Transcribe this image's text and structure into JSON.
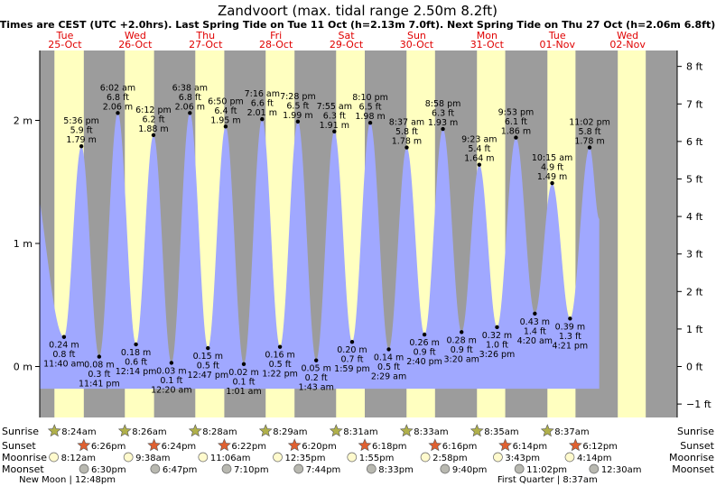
{
  "chart_data": {
    "type": "area",
    "title": "Zandvoort (max. tidal range 2.50m 8.2ft)",
    "subtitle": "Times are CEST (UTC +2.0hrs). Last Spring Tide on Tue 11 Oct (h=2.13m 7.0ft). Next Spring Tide on Thu 27 Oct (h=2.06m 6.8ft)",
    "ylim": [
      -0.42,
      2.65
    ],
    "left_axis": {
      "unit": "m",
      "ticks": [
        {
          "v": 0,
          "label": "0 m"
        },
        {
          "v": 1,
          "label": "1 m"
        },
        {
          "v": 2,
          "label": "2 m"
        }
      ]
    },
    "right_axis": {
      "unit": "ft",
      "ticks": [
        {
          "v": -1,
          "label": "−1 ft"
        },
        {
          "v": 0,
          "label": "0 ft"
        },
        {
          "v": 1,
          "label": "1 ft"
        },
        {
          "v": 2,
          "label": "2 ft"
        },
        {
          "v": 3,
          "label": "3 ft"
        },
        {
          "v": 4,
          "label": "4 ft"
        },
        {
          "v": 5,
          "label": "5 ft"
        },
        {
          "v": 6,
          "label": "6 ft"
        },
        {
          "v": 7,
          "label": "7 ft"
        },
        {
          "v": 8,
          "label": "8 ft"
        }
      ]
    },
    "days": [
      {
        "weekday": "Tue",
        "date": "25-Oct",
        "sunrise": 8.4,
        "sunset": 18.43
      },
      {
        "weekday": "Wed",
        "date": "26-Oct",
        "sunrise": 8.43,
        "sunset": 18.4
      },
      {
        "weekday": "Thu",
        "date": "27-Oct",
        "sunrise": 8.47,
        "sunset": 18.37
      },
      {
        "weekday": "Fri",
        "date": "28-Oct",
        "sunrise": 8.48,
        "sunset": 18.33
      },
      {
        "weekday": "Sat",
        "date": "29-Oct",
        "sunrise": 8.52,
        "sunset": 18.3
      },
      {
        "weekday": "Sun",
        "date": "30-Oct",
        "sunrise": 8.55,
        "sunset": 18.27
      },
      {
        "weekday": "Mon",
        "date": "31-Oct",
        "sunrise": 8.58,
        "sunset": 18.23
      },
      {
        "weekday": "Tue",
        "date": "01-Nov",
        "sunrise": 8.62,
        "sunset": 18.2
      },
      {
        "weekday": "Wed",
        "date": "02-Nov",
        "sunrise": 8.63,
        "sunset": 18.17
      }
    ],
    "tide_start": {
      "t": -0.5,
      "h": 1.68
    },
    "tide_end": {
      "t": 194.3,
      "h": 1.2
    },
    "tides": [
      {
        "t": 11.67,
        "h": 0.24,
        "type": "low",
        "lines": [
          "0.24 m",
          "0.8 ft",
          "11:40 am"
        ]
      },
      {
        "t": 17.6,
        "h": 1.79,
        "type": "high",
        "lines": [
          "5:36 pm",
          "5.9 ft",
          "1.79 m"
        ]
      },
      {
        "t": 23.68,
        "h": 0.08,
        "type": "low",
        "lines": [
          "0.08 m",
          "0.3 ft",
          "11:41 pm"
        ]
      },
      {
        "t": 30.03,
        "h": 2.06,
        "type": "high",
        "lines": [
          "6:02 am",
          "6.8 ft",
          "2.06 m"
        ]
      },
      {
        "t": 36.23,
        "h": 0.18,
        "type": "low",
        "lines": [
          "0.18 m",
          "0.6 ft",
          "12:14 pm"
        ]
      },
      {
        "t": 42.2,
        "h": 1.88,
        "type": "high",
        "lines": [
          "6:12 pm",
          "6.2 ft",
          "1.88 m"
        ]
      },
      {
        "t": 48.33,
        "h": 0.03,
        "type": "low",
        "lines": [
          "0.03 m",
          "0.1 ft",
          "12:20 am"
        ]
      },
      {
        "t": 54.63,
        "h": 2.06,
        "type": "high",
        "lines": [
          "6:38 am",
          "6.8 ft",
          "2.06 m"
        ]
      },
      {
        "t": 60.78,
        "h": 0.15,
        "type": "low",
        "lines": [
          "0.15 m",
          "0.5 ft",
          "12:47 pm"
        ]
      },
      {
        "t": 66.83,
        "h": 1.95,
        "type": "high",
        "lines": [
          "6:50 pm",
          "6.4 ft",
          "1.95 m"
        ]
      },
      {
        "t": 73.02,
        "h": 0.02,
        "type": "low",
        "lines": [
          "0.02 m",
          "0.1 ft",
          "1:01 am"
        ]
      },
      {
        "t": 79.27,
        "h": 2.01,
        "type": "high",
        "lines": [
          "7:16 am",
          "6.6 ft",
          "2.01 m"
        ]
      },
      {
        "t": 85.37,
        "h": 0.16,
        "type": "low",
        "lines": [
          "0.16 m",
          "0.5 ft",
          "1:22 pm"
        ]
      },
      {
        "t": 91.47,
        "h": 1.99,
        "type": "high",
        "lines": [
          "7:28 pm",
          "6.5 ft",
          "1.99 m"
        ]
      },
      {
        "t": 97.72,
        "h": 0.05,
        "type": "low",
        "lines": [
          "0.05 m",
          "0.2 ft",
          "1:43 am"
        ]
      },
      {
        "t": 103.92,
        "h": 1.91,
        "type": "high",
        "lines": [
          "7:55 am",
          "6.3 ft",
          "1.91 m"
        ]
      },
      {
        "t": 109.98,
        "h": 0.2,
        "type": "low",
        "lines": [
          "0.20 m",
          "0.7 ft",
          "1:59 pm"
        ]
      },
      {
        "t": 116.17,
        "h": 1.98,
        "type": "high",
        "lines": [
          "8:10 pm",
          "6.5 ft",
          "1.98 m"
        ]
      },
      {
        "t": 122.48,
        "h": 0.14,
        "type": "low",
        "lines": [
          "0.14 m",
          "0.5 ft",
          "2:29 am"
        ]
      },
      {
        "t": 128.62,
        "h": 1.78,
        "type": "high",
        "lines": [
          "8:37 am",
          "5.8 ft",
          "1.78 m"
        ]
      },
      {
        "t": 134.67,
        "h": 0.26,
        "type": "low",
        "lines": [
          "0.26 m",
          "0.9 ft",
          "2:40 pm"
        ]
      },
      {
        "t": 140.97,
        "h": 1.93,
        "type": "high",
        "lines": [
          "8:58 pm",
          "6.3 ft",
          "1.93 m"
        ]
      },
      {
        "t": 147.33,
        "h": 0.28,
        "type": "low",
        "lines": [
          "0.28 m",
          "0.9 ft",
          "3:20 am"
        ]
      },
      {
        "t": 153.38,
        "h": 1.64,
        "type": "high",
        "lines": [
          "9:23 am",
          "5.4 ft",
          "1.64 m"
        ]
      },
      {
        "t": 159.43,
        "h": 0.32,
        "type": "low",
        "lines": [
          "0.32 m",
          "1.0 ft",
          "3:26 pm"
        ]
      },
      {
        "t": 165.88,
        "h": 1.86,
        "type": "high",
        "lines": [
          "9:53 pm",
          "6.1 ft",
          "1.86 m"
        ]
      },
      {
        "t": 172.33,
        "h": 0.43,
        "type": "low",
        "lines": [
          "0.43 m",
          "1.4 ft",
          "4:20 am"
        ]
      },
      {
        "t": 178.25,
        "h": 1.49,
        "type": "high",
        "lines": [
          "10:15 am",
          "4.9 ft",
          "1.49 m"
        ]
      },
      {
        "t": 184.35,
        "h": 0.39,
        "type": "low",
        "lines": [
          "0.39 m",
          "1.3 ft",
          "4:21 pm"
        ]
      },
      {
        "t": 191.03,
        "h": 1.78,
        "type": "high",
        "lines": [
          "11:02 pm",
          "5.8 ft",
          "1.78 m"
        ]
      }
    ],
    "bottom_rows": [
      {
        "label": "Sunrise",
        "kind": "sun",
        "events": [
          {
            "t": 8.4,
            "text": "8:24am"
          },
          {
            "t": 32.43,
            "text": "8:26am"
          },
          {
            "t": 56.47,
            "text": "8:28am"
          },
          {
            "t": 80.48,
            "text": "8:29am"
          },
          {
            "t": 104.52,
            "text": "8:31am"
          },
          {
            "t": 128.55,
            "text": "8:33am"
          },
          {
            "t": 152.58,
            "text": "8:35am"
          },
          {
            "t": 176.62,
            "text": "8:37am"
          }
        ]
      },
      {
        "label": "Sunset",
        "kind": "sunset",
        "events": [
          {
            "t": 18.43,
            "text": "6:26pm"
          },
          {
            "t": 42.4,
            "text": "6:24pm"
          },
          {
            "t": 66.37,
            "text": "6:22pm"
          },
          {
            "t": 90.33,
            "text": "6:20pm"
          },
          {
            "t": 114.3,
            "text": "6:18pm"
          },
          {
            "t": 138.27,
            "text": "6:16pm"
          },
          {
            "t": 162.23,
            "text": "6:14pm"
          },
          {
            "t": 186.2,
            "text": "6:12pm"
          }
        ]
      },
      {
        "label": "Moonrise",
        "kind": "moonrise",
        "events": [
          {
            "t": 8.2,
            "text": "8:12am"
          },
          {
            "t": 33.63,
            "text": "9:38am"
          },
          {
            "t": 59.1,
            "text": "11:06am"
          },
          {
            "t": 84.58,
            "text": "12:35pm"
          },
          {
            "t": 109.92,
            "text": "1:55pm"
          },
          {
            "t": 134.97,
            "text": "2:58pm"
          },
          {
            "t": 159.72,
            "text": "3:43pm"
          },
          {
            "t": 184.23,
            "text": "4:14pm"
          }
        ]
      },
      {
        "label": "Moonset",
        "kind": "moonset",
        "events": [
          {
            "t": 18.5,
            "text": "6:30pm"
          },
          {
            "t": 42.78,
            "text": "6:47pm"
          },
          {
            "t": 67.17,
            "text": "7:10pm"
          },
          {
            "t": 91.73,
            "text": "7:44pm"
          },
          {
            "t": 116.55,
            "text": "8:33pm"
          },
          {
            "t": 141.67,
            "text": "9:40pm"
          },
          {
            "t": 167.03,
            "text": "11:02pm"
          },
          {
            "t": 192.5,
            "text": "12:30am"
          }
        ]
      }
    ],
    "moon_phases": [
      {
        "t": 12.8,
        "text": "New Moon | 12:48pm"
      },
      {
        "t": 176.62,
        "text": "First Quarter | 8:37am"
      }
    ],
    "colors": {
      "night": "#9c9c9c",
      "day": "#ffffc0",
      "water": "#a0a8ff",
      "water_edge": "#a0a8ff",
      "date": "#e00000",
      "text": "#000000",
      "star_sun": "#b0b04a",
      "star_set": "#e06030",
      "moon_rise": "#fffacd",
      "moon_set": "#b8b8b0"
    }
  }
}
